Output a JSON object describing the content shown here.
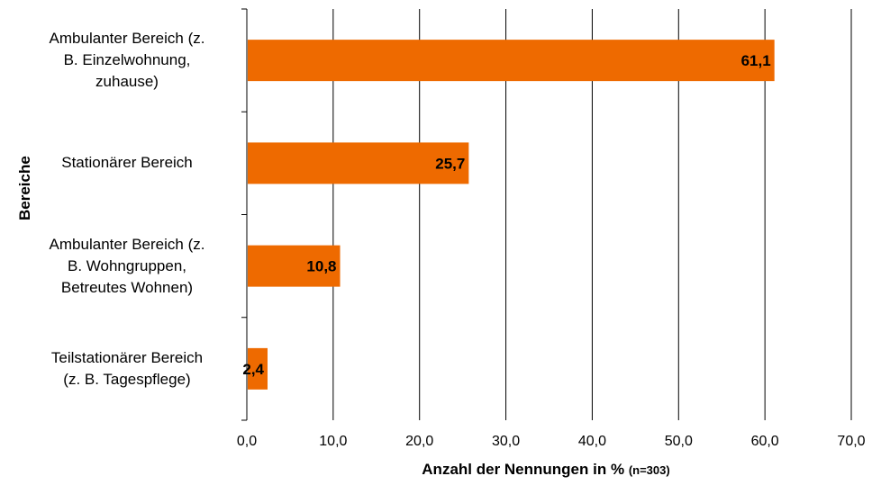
{
  "chart_data": {
    "type": "bar",
    "orientation": "horizontal",
    "categories": [
      [
        "Ambulanter Bereich (z.",
        "B. Einzelwohnung,",
        "zuhause)"
      ],
      [
        "Stationärer Bereich"
      ],
      [
        "Ambulanter Bereich (z.",
        "B. Wohngruppen,",
        "Betreutes Wohnen)"
      ],
      [
        "Teilstationärer Bereich",
        "(z. B. Tagespflege)"
      ]
    ],
    "values": [
      61.1,
      25.7,
      10.8,
      2.4
    ],
    "value_labels": [
      "61,1",
      "25,7",
      "10,8",
      "2,4"
    ],
    "xlim": [
      0,
      70
    ],
    "xticks": [
      0,
      10,
      20,
      30,
      40,
      50,
      60,
      70
    ],
    "xtick_labels": [
      "0,0",
      "10,0",
      "20,0",
      "30,0",
      "40,0",
      "50,0",
      "60,0",
      "70,0"
    ],
    "xlabel": "Anzahl der Nennungen in %",
    "xlabel_note": "(n=303)",
    "ylabel": "Bereiche",
    "grid": "vertical",
    "bar_color": "#ee6a00"
  }
}
